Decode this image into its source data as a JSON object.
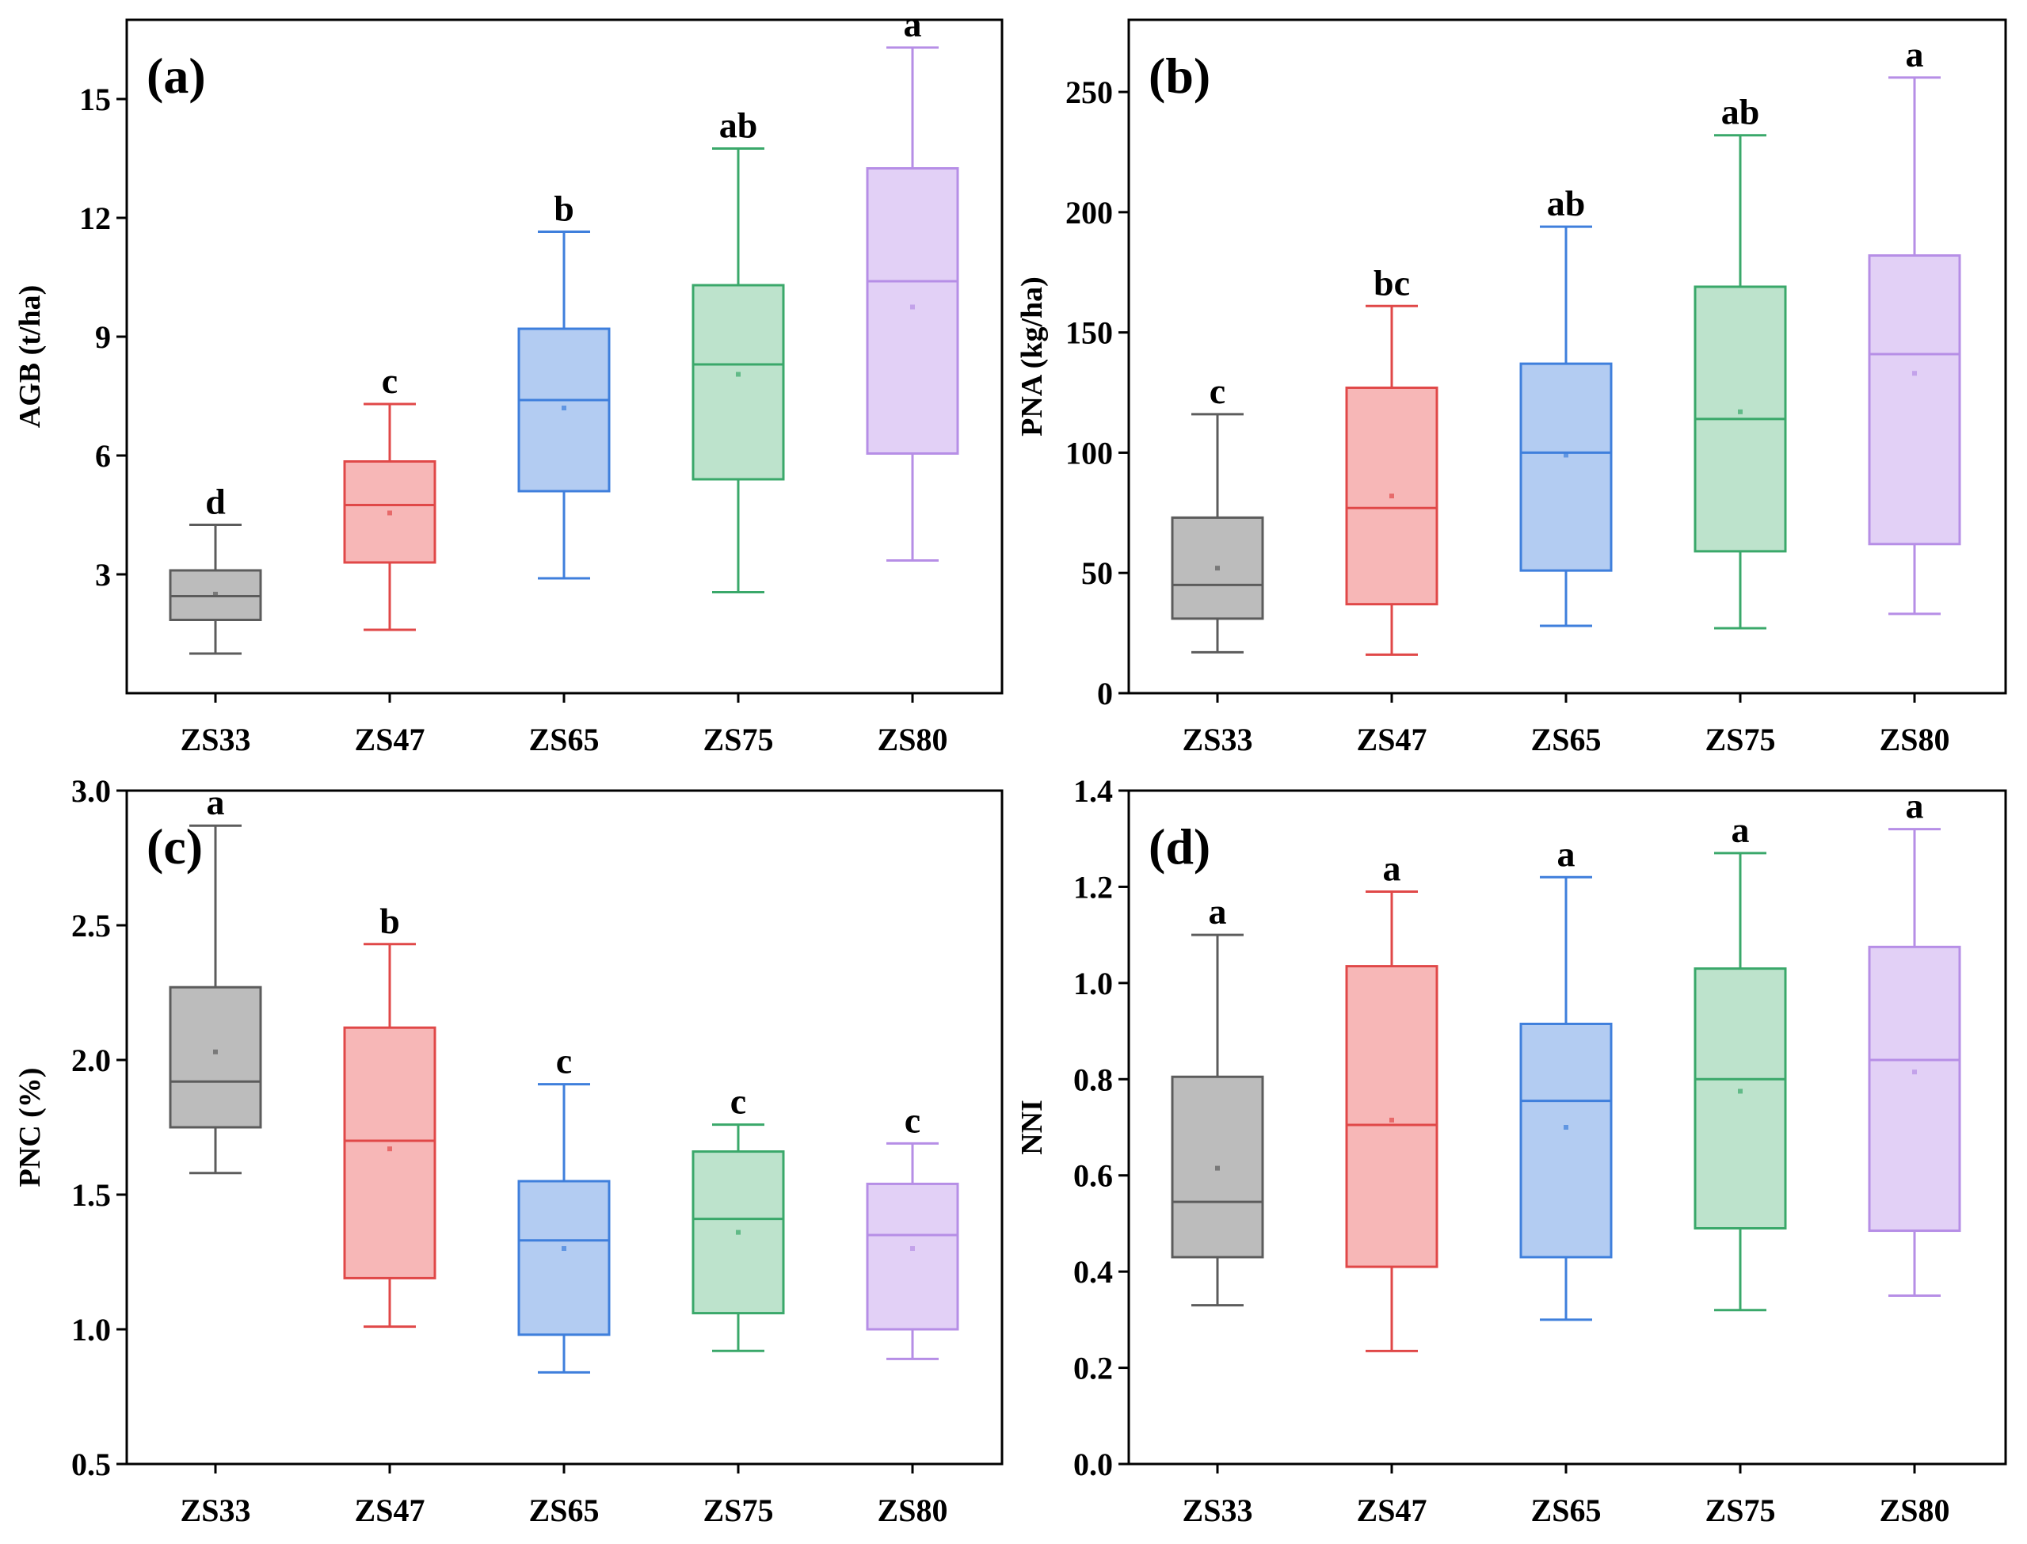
{
  "chart_data": [
    {
      "type": "box",
      "panel_label": "(a)",
      "ylabel": "AGB (t/ha)",
      "categories": [
        "ZS33",
        "ZS47",
        "ZS65",
        "ZS75",
        "ZS80"
      ],
      "ylim": [
        0,
        17
      ],
      "yticks": [
        3,
        6,
        9,
        12,
        15
      ],
      "ytick_labels": [
        "3",
        "6",
        "9",
        "12",
        "15"
      ],
      "boxes": [
        {
          "category": "ZS33",
          "min": 1.0,
          "q1": 1.85,
          "median": 2.45,
          "mean": 2.5,
          "q3": 3.1,
          "max": 4.25,
          "sig": "d"
        },
        {
          "category": "ZS47",
          "min": 1.6,
          "q1": 3.3,
          "median": 4.75,
          "mean": 4.55,
          "q3": 5.85,
          "max": 7.3,
          "sig": "c"
        },
        {
          "category": "ZS65",
          "min": 2.9,
          "q1": 5.1,
          "median": 7.4,
          "mean": 7.2,
          "q3": 9.2,
          "max": 11.65,
          "sig": "b"
        },
        {
          "category": "ZS75",
          "min": 2.55,
          "q1": 5.4,
          "median": 8.3,
          "mean": 8.05,
          "q3": 10.3,
          "max": 13.75,
          "sig": "ab"
        },
        {
          "category": "ZS80",
          "min": 3.35,
          "q1": 6.05,
          "median": 10.4,
          "mean": 9.75,
          "q3": 13.25,
          "max": 16.3,
          "sig": "a"
        }
      ]
    },
    {
      "type": "box",
      "panel_label": "(b)",
      "ylabel": "PNA (kg/ha)",
      "categories": [
        "ZS33",
        "ZS47",
        "ZS65",
        "ZS75",
        "ZS80"
      ],
      "ylim": [
        0,
        280
      ],
      "yticks": [
        0,
        50,
        100,
        150,
        200,
        250
      ],
      "ytick_labels": [
        "0",
        "50",
        "100",
        "150",
        "200",
        "250"
      ],
      "boxes": [
        {
          "category": "ZS33",
          "min": 17,
          "q1": 31,
          "median": 45,
          "mean": 52,
          "q3": 73,
          "max": 116,
          "sig": "c"
        },
        {
          "category": "ZS47",
          "min": 16,
          "q1": 37,
          "median": 77,
          "mean": 82,
          "q3": 127,
          "max": 161,
          "sig": "bc"
        },
        {
          "category": "ZS65",
          "min": 28,
          "q1": 51,
          "median": 100,
          "mean": 99,
          "q3": 137,
          "max": 194,
          "sig": "ab"
        },
        {
          "category": "ZS75",
          "min": 27,
          "q1": 59,
          "median": 114,
          "mean": 117,
          "q3": 169,
          "max": 232,
          "sig": "ab"
        },
        {
          "category": "ZS80",
          "min": 33,
          "q1": 62,
          "median": 141,
          "mean": 133,
          "q3": 182,
          "max": 256,
          "sig": "a"
        }
      ]
    },
    {
      "type": "box",
      "panel_label": "(c)",
      "ylabel": "PNC (%)",
      "categories": [
        "ZS33",
        "ZS47",
        "ZS65",
        "ZS75",
        "ZS80"
      ],
      "ylim": [
        0.5,
        3.0
      ],
      "yticks": [
        0.5,
        1.0,
        1.5,
        2.0,
        2.5,
        3.0
      ],
      "ytick_labels": [
        "0.5",
        "1.0",
        "1.5",
        "2.0",
        "2.5",
        "3.0"
      ],
      "boxes": [
        {
          "category": "ZS33",
          "min": 1.58,
          "q1": 1.75,
          "median": 1.92,
          "mean": 2.03,
          "q3": 2.27,
          "max": 2.87,
          "sig": "a"
        },
        {
          "category": "ZS47",
          "min": 1.01,
          "q1": 1.19,
          "median": 1.7,
          "mean": 1.67,
          "q3": 2.12,
          "max": 2.43,
          "sig": "b"
        },
        {
          "category": "ZS65",
          "min": 0.84,
          "q1": 0.98,
          "median": 1.33,
          "mean": 1.3,
          "q3": 1.55,
          "max": 1.91,
          "sig": "c"
        },
        {
          "category": "ZS75",
          "min": 0.92,
          "q1": 1.06,
          "median": 1.41,
          "mean": 1.36,
          "q3": 1.66,
          "max": 1.76,
          "sig": "c"
        },
        {
          "category": "ZS80",
          "min": 0.89,
          "q1": 1.0,
          "median": 1.35,
          "mean": 1.3,
          "q3": 1.54,
          "max": 1.69,
          "sig": "c"
        }
      ]
    },
    {
      "type": "box",
      "panel_label": "(d)",
      "ylabel": "NNI",
      "categories": [
        "ZS33",
        "ZS47",
        "ZS65",
        "ZS75",
        "ZS80"
      ],
      "ylim": [
        0.0,
        1.4
      ],
      "yticks": [
        0.0,
        0.2,
        0.4,
        0.6,
        0.8,
        1.0,
        1.2,
        1.4
      ],
      "ytick_labels": [
        "0.0",
        "0.2",
        "0.4",
        "0.6",
        "0.8",
        "1.0",
        "1.2",
        "1.4"
      ],
      "boxes": [
        {
          "category": "ZS33",
          "min": 0.33,
          "q1": 0.43,
          "median": 0.545,
          "mean": 0.615,
          "q3": 0.805,
          "max": 1.1,
          "sig": "a"
        },
        {
          "category": "ZS47",
          "min": 0.235,
          "q1": 0.41,
          "median": 0.705,
          "mean": 0.715,
          "q3": 1.035,
          "max": 1.19,
          "sig": "a"
        },
        {
          "category": "ZS65",
          "min": 0.3,
          "q1": 0.43,
          "median": 0.755,
          "mean": 0.7,
          "q3": 0.915,
          "max": 1.22,
          "sig": "a"
        },
        {
          "category": "ZS75",
          "min": 0.32,
          "q1": 0.49,
          "median": 0.8,
          "mean": 0.775,
          "q3": 1.03,
          "max": 1.27,
          "sig": "a"
        },
        {
          "category": "ZS80",
          "min": 0.35,
          "q1": 0.485,
          "median": 0.84,
          "mean": 0.815,
          "q3": 1.075,
          "max": 1.32,
          "sig": "a"
        }
      ]
    }
  ],
  "series_colors": [
    {
      "name": "ZS33",
      "stroke": "#5c5c5c",
      "fill": "#bcbcbc"
    },
    {
      "name": "ZS47",
      "stroke": "#e04848",
      "fill": "#f7b7b7"
    },
    {
      "name": "ZS65",
      "stroke": "#3f7fdc",
      "fill": "#b3ccf2"
    },
    {
      "name": "ZS75",
      "stroke": "#3aa86a",
      "fill": "#bde3cc"
    },
    {
      "name": "ZS80",
      "stroke": "#b68ee6",
      "fill": "#e2d0f6"
    }
  ]
}
